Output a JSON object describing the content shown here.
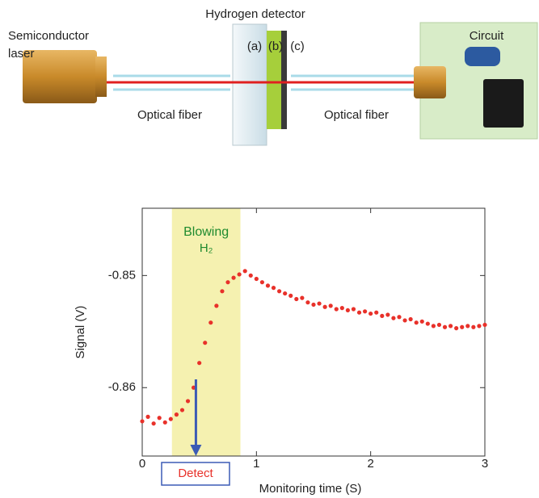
{
  "diagram": {
    "laser_label": [
      "Semiconductor",
      "laser"
    ],
    "detector_label": "Hydrogen detector",
    "layer_labels": [
      "(a)",
      "(b)",
      "(c)"
    ],
    "fiber_labels": [
      "Optical fiber",
      "Optical fiber"
    ],
    "circuit_label": "Circuit"
  },
  "chart_data": {
    "type": "scatter",
    "x_label": "Monitoring time (S)",
    "y_label": "Signal (V)",
    "annotation": [
      "Blowing",
      "H₂"
    ],
    "highlight_x": [
      0.26,
      0.86
    ],
    "highlight_color": "#f5f1b0",
    "detect_label": "Detect",
    "detect_x": 0.47,
    "arrow_color": "#3b5bb5",
    "color": "#e8312a",
    "x": [
      0,
      0.05,
      0.1,
      0.15,
      0.2,
      0.25,
      0.3,
      0.35,
      0.4,
      0.45,
      0.5,
      0.55,
      0.6,
      0.65,
      0.7,
      0.75,
      0.8,
      0.85,
      0.9,
      0.95,
      1.0,
      1.05,
      1.1,
      1.15,
      1.2,
      1.25,
      1.3,
      1.35,
      1.4,
      1.45,
      1.5,
      1.55,
      1.6,
      1.65,
      1.7,
      1.75,
      1.8,
      1.85,
      1.9,
      1.95,
      2.0,
      2.05,
      2.1,
      2.15,
      2.2,
      2.25,
      2.3,
      2.35,
      2.4,
      2.45,
      2.5,
      2.55,
      2.6,
      2.65,
      2.7,
      2.75,
      2.8,
      2.85,
      2.9,
      2.95,
      3.0
    ],
    "values": [
      -0.863,
      -0.8626,
      -0.8632,
      -0.8627,
      -0.8631,
      -0.8628,
      -0.8624,
      -0.862,
      -0.8612,
      -0.86,
      -0.8578,
      -0.856,
      -0.8542,
      -0.8527,
      -0.8514,
      -0.8506,
      -0.8502,
      -0.8499,
      -0.8496,
      -0.85,
      -0.8503,
      -0.8506,
      -0.8509,
      -0.8511,
      -0.8514,
      -0.8516,
      -0.8518,
      -0.8521,
      -0.852,
      -0.8524,
      -0.8526,
      -0.8525,
      -0.8528,
      -0.8527,
      -0.853,
      -0.8529,
      -0.8531,
      -0.853,
      -0.8533,
      -0.8532,
      -0.8534,
      -0.8533,
      -0.8536,
      -0.8535,
      -0.8538,
      -0.8537,
      -0.854,
      -0.8539,
      -0.8542,
      -0.8541,
      -0.8543,
      -0.8545,
      -0.8544,
      -0.8546,
      -0.8545,
      -0.8547,
      -0.8546,
      -0.8545,
      -0.8546,
      -0.8545,
      -0.8544
    ],
    "xlim": [
      0,
      3
    ],
    "xticks": [
      0,
      1,
      2,
      3
    ],
    "ylim": [
      -0.8661,
      -0.844
    ],
    "yticks": [
      -0.86,
      -0.85
    ]
  }
}
